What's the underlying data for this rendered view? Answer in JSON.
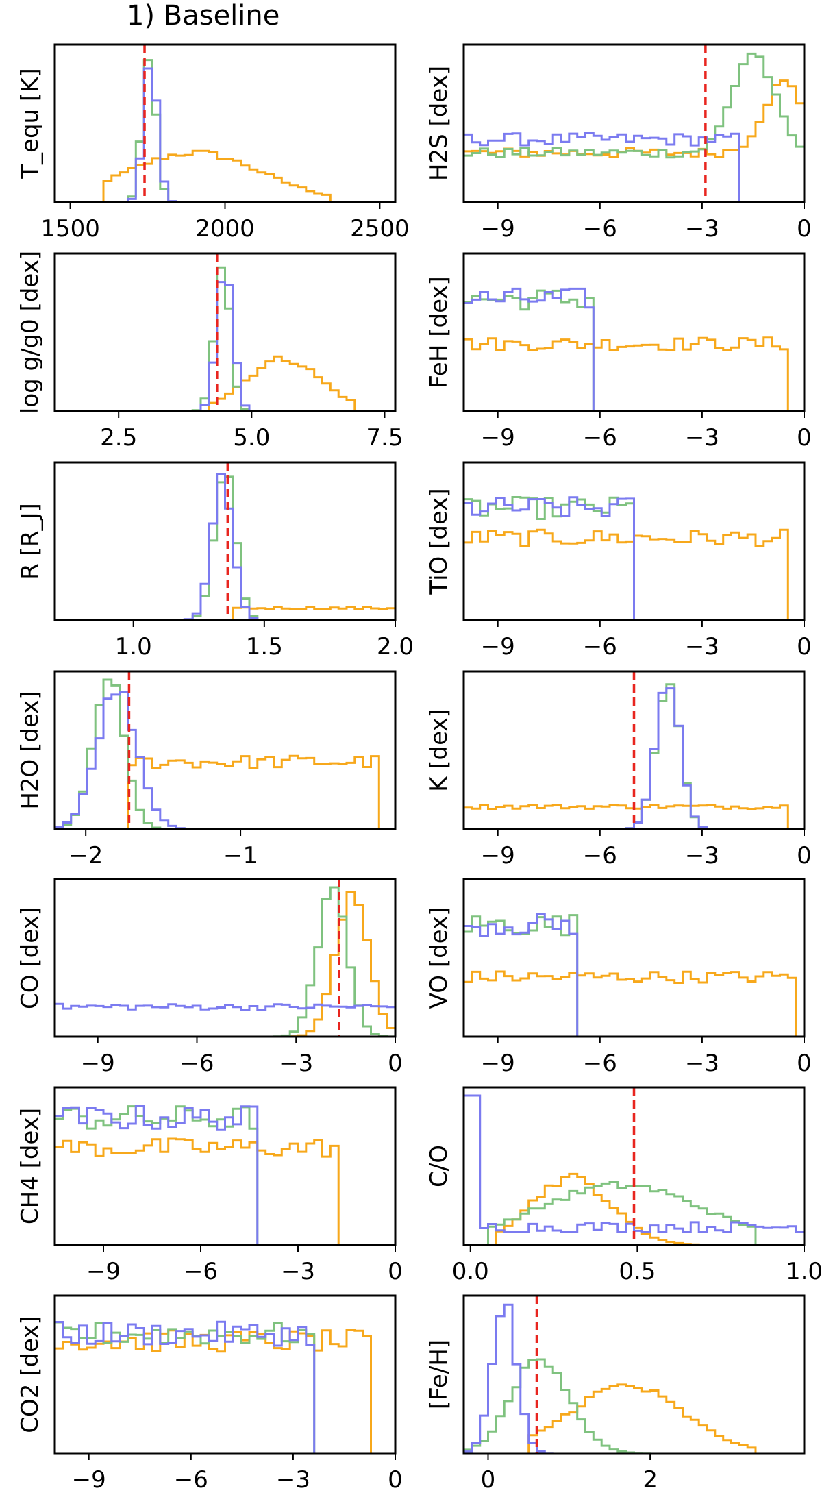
{
  "colors": {
    "blue": "#7b7bf0",
    "green": "#7fc27f",
    "orange": "#f7a81b",
    "truth": "#e8251f",
    "frame": "#000000"
  },
  "chart_data": {
    "type": "histogram-grid",
    "title": "1) Baseline",
    "series": [
      {
        "name": "blue",
        "color": "#7b7bf0"
      },
      {
        "name": "green",
        "color": "#7fc27f"
      },
      {
        "name": "orange",
        "color": "#f7a81b"
      },
      {
        "name": "truth (dashed)",
        "color": "#e8251f"
      }
    ],
    "panels": [
      {
        "id": "Tequ",
        "ylabel": "T_equ [K]",
        "xlim": [
          1450,
          2550
        ],
        "ticks": [
          1500,
          2000,
          2500
        ],
        "tick_labels": [
          "1500",
          "2000",
          "2500"
        ],
        "truth": 1740,
        "hist": {
          "blue": {
            "mu": 1760,
            "sd": 22,
            "ratio": 0.97
          },
          "green": {
            "mu": 1755,
            "sd": 22,
            "ratio": 1.0
          },
          "orange": {
            "mu": 1900,
            "sd": 220,
            "lo": 1600,
            "hi": 2330,
            "ratio": 0.33
          }
        }
      },
      {
        "id": "H2S",
        "ylabel": "H2S [dex]",
        "xlim": [
          -10,
          0
        ],
        "ticks": [
          -9,
          -6,
          -3,
          0
        ],
        "tick_labels": [
          "−9",
          "−6",
          "−3",
          "0"
        ],
        "truth": -2.9,
        "hist": {
          "blue": {
            "flat": 0.42,
            "to": -1.8
          },
          "green": {
            "flat": 0.33,
            "peak": -1.5,
            "ratio": 1.0
          },
          "orange": {
            "flat": 0.33,
            "peak": -0.6,
            "ratio": 0.8
          }
        }
      },
      {
        "id": "logg",
        "ylabel": "log g/g0 [dex]",
        "xlim": [
          1.3,
          7.7
        ],
        "ticks": [
          2.5,
          5.0,
          7.5
        ],
        "tick_labels": [
          "2.5",
          "5.0",
          "7.5"
        ],
        "truth": 4.35,
        "hist": {
          "blue": {
            "mu": 4.5,
            "sd": 0.15,
            "ratio": 1.0
          },
          "green": {
            "mu": 4.45,
            "sd": 0.15,
            "ratio": 0.95
          },
          "orange": {
            "mu": 5.6,
            "sd": 0.7,
            "lo": 4.2,
            "hi": 7.0,
            "ratio": 0.35
          }
        }
      },
      {
        "id": "FeH",
        "ylabel": "FeH [dex]",
        "xlim": [
          -10,
          0
        ],
        "ticks": [
          -9,
          -6,
          -3,
          0
        ],
        "tick_labels": [
          "−9",
          "−6",
          "−3",
          "0"
        ],
        "hist": {
          "blue": {
            "flat": 0.75,
            "to": -6.2
          },
          "green": {
            "flat": 0.75,
            "to": -6.2
          },
          "orange": {
            "flat": 0.45,
            "to": -0.5
          }
        }
      },
      {
        "id": "R",
        "ylabel": "R [R_J]",
        "xlim": [
          0.7,
          2.0
        ],
        "ticks": [
          1.0,
          1.5,
          2.0
        ],
        "tick_labels": [
          "1.0",
          "1.5",
          "2.0"
        ],
        "truth": 1.36,
        "hist": {
          "blue": {
            "mu": 1.34,
            "sd": 0.04,
            "ratio": 0.98
          },
          "green": {
            "mu": 1.35,
            "sd": 0.04,
            "ratio": 1.0
          },
          "orange": {
            "flat": 0.08,
            "from": 1.38
          }
        }
      },
      {
        "id": "TiO",
        "ylabel": "TiO [dex]",
        "xlim": [
          -10,
          0
        ],
        "ticks": [
          -9,
          -6,
          -3,
          0
        ],
        "tick_labels": [
          "−9",
          "−6",
          "−3",
          "0"
        ],
        "hist": {
          "blue": {
            "flat": 0.75,
            "to": -5.0
          },
          "green": {
            "flat": 0.75,
            "to": -5.0
          },
          "orange": {
            "flat": 0.55,
            "to": -0.5
          }
        }
      },
      {
        "id": "H2O",
        "ylabel": "H2O [dex]",
        "xlim": [
          -2.2,
          0.0
        ],
        "ticks": [
          -2,
          -1
        ],
        "tick_labels": [
          "−2",
          "−1"
        ],
        "truth": -1.72,
        "hist": {
          "blue": {
            "mu": -1.8,
            "sd": 0.13,
            "ratio": 0.93
          },
          "green": {
            "mu": -1.85,
            "sd": 0.1,
            "ratio": 1.0
          },
          "orange": {
            "flat": 0.45,
            "from": -1.75,
            "to": -0.1
          }
        }
      },
      {
        "id": "K",
        "ylabel": "K [dex]",
        "xlim": [
          -10,
          0
        ],
        "ticks": [
          -9,
          -6,
          -3,
          0
        ],
        "tick_labels": [
          "−9",
          "−6",
          "−3",
          "0"
        ],
        "truth": -5.0,
        "hist": {
          "blue": {
            "mu": -4.0,
            "sd": 0.35,
            "ratio": 1.0
          },
          "green": {
            "mu": -4.0,
            "sd": 0.35,
            "ratio": 1.0
          },
          "orange": {
            "flat": 0.15,
            "to": -0.4
          }
        }
      },
      {
        "id": "CO",
        "ylabel": "CO [dex]",
        "xlim": [
          -10.3,
          0
        ],
        "ticks": [
          -9,
          -6,
          -3,
          0
        ],
        "tick_labels": [
          "−9",
          "−6",
          "−3",
          "0"
        ],
        "truth": -1.7,
        "hist": {
          "blue": {
            "flat": 0.2
          },
          "green": {
            "mu": -1.9,
            "sd": 0.45,
            "ratio": 1.0
          },
          "orange": {
            "mu": -1.3,
            "sd": 0.5,
            "ratio": 0.92
          }
        }
      },
      {
        "id": "VO",
        "ylabel": "VO [dex]",
        "xlim": [
          -10,
          0
        ],
        "ticks": [
          -9,
          -6,
          -3,
          0
        ],
        "tick_labels": [
          "−9",
          "−6",
          "−3",
          "0"
        ],
        "hist": {
          "blue": {
            "flat": 0.75,
            "to": -6.6
          },
          "green": {
            "flat": 0.75,
            "to": -6.6
          },
          "orange": {
            "flat": 0.4,
            "to": -0.2
          }
        }
      },
      {
        "id": "CH4",
        "ylabel": "CH4 [dex]",
        "xlim": [
          -10.5,
          0
        ],
        "ticks": [
          -9,
          -6,
          -3,
          0
        ],
        "tick_labels": [
          "−9",
          "−6",
          "−3",
          "0"
        ],
        "hist": {
          "blue": {
            "flat": 0.85,
            "to": -4.3
          },
          "green": {
            "flat": 0.85,
            "to": -4.3
          },
          "orange": {
            "flat": 0.65,
            "to": -1.8
          }
        }
      },
      {
        "id": "CO_ratio",
        "ylabel": "C/O",
        "xlim": [
          -0.02,
          1.0
        ],
        "ticks": [
          0.0,
          0.5,
          1.0
        ],
        "tick_labels": [
          "0.0",
          "0.5",
          "1.0"
        ],
        "truth": 0.49,
        "hist": {
          "blue": {
            "spike": 0.01,
            "ratio": 1.0,
            "flat": 0.12
          },
          "green": {
            "mu": 0.45,
            "sd": 0.25,
            "lo": 0.05,
            "hi": 0.85,
            "ratio": 0.4
          },
          "orange": {
            "mu": 0.3,
            "sd": 0.12,
            "lo": 0.07,
            "hi": 0.7,
            "ratio": 0.45
          }
        }
      },
      {
        "id": "CO2",
        "ylabel": "CO2 [dex]",
        "xlim": [
          -10,
          0
        ],
        "ticks": [
          -9,
          -6,
          -3,
          0
        ],
        "tick_labels": [
          "−9",
          "−6",
          "−3",
          "0"
        ],
        "hist": {
          "blue": {
            "flat": 0.8,
            "to": -2.5
          },
          "green": {
            "flat": 0.8,
            "to": -2.5
          },
          "orange": {
            "flat": 0.75,
            "to": -0.8
          }
        }
      },
      {
        "id": "FeH_met",
        "ylabel": "[Fe/H]",
        "xlim": [
          -0.3,
          3.9
        ],
        "ticks": [
          0,
          2
        ],
        "tick_labels": [
          "0",
          "2"
        ],
        "truth": 0.6,
        "hist": {
          "blue": {
            "mu": 0.2,
            "sd": 0.15,
            "ratio": 1.0
          },
          "green": {
            "mu": 0.65,
            "sd": 0.35,
            "ratio": 0.65
          },
          "orange": {
            "mu": 1.7,
            "sd": 0.7,
            "lo": 0.5,
            "hi": 3.3,
            "ratio": 0.45
          }
        }
      }
    ]
  }
}
